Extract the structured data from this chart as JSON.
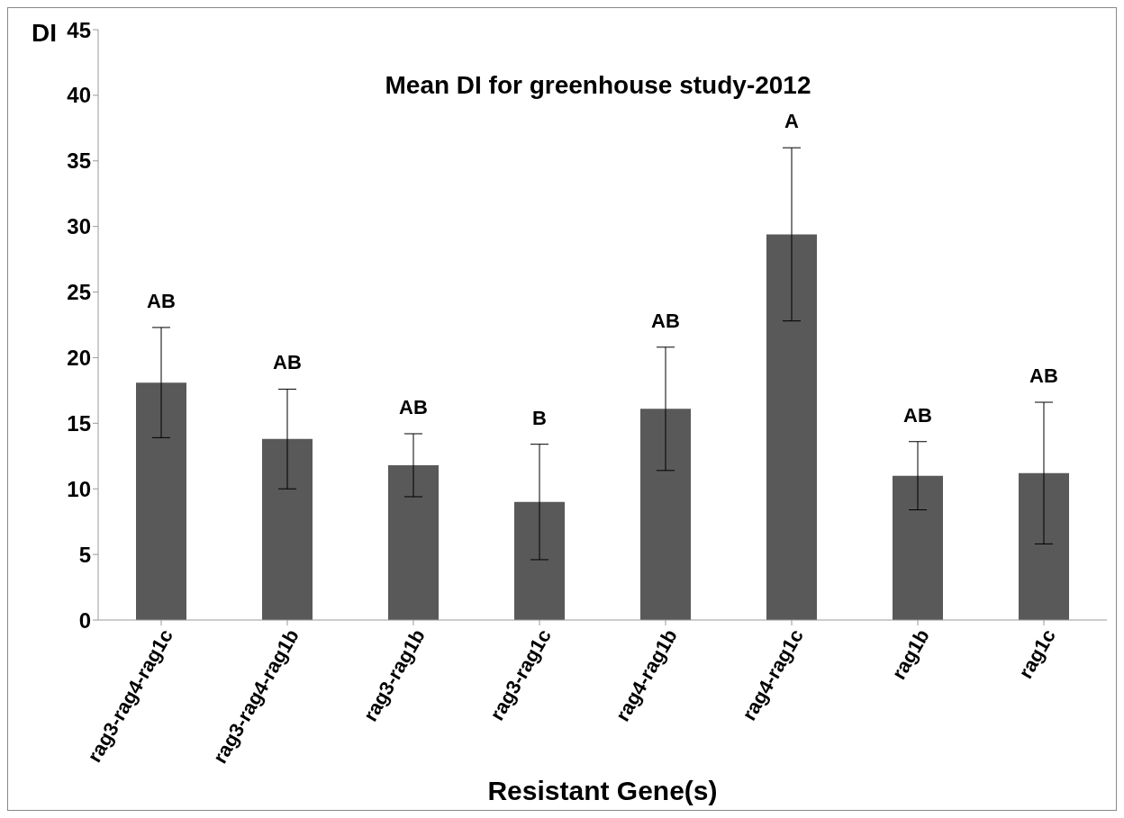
{
  "chart_data": {
    "type": "bar",
    "title": "Mean DI for greenhouse study-2012",
    "xlabel": "Resistant Gene(s)",
    "ylabel": "DI",
    "categories": [
      "rag3-rag4-rag1c",
      "rag3-rag4-rag1b",
      "rag3-rag1b",
      "rag3-rag1c",
      "rag4-rag1b",
      "rag4-rag1c",
      "rag1b",
      "rag1c"
    ],
    "values": [
      18.1,
      13.8,
      11.8,
      9.0,
      16.1,
      29.4,
      11.0,
      11.2
    ],
    "errors": [
      4.2,
      3.8,
      2.4,
      4.4,
      4.7,
      6.6,
      2.6,
      5.4
    ],
    "color": "#595959",
    "ylim": [
      0,
      45
    ],
    "yticks": [
      0,
      5,
      10,
      15,
      20,
      25,
      30,
      35,
      40,
      45
    ],
    "grid": false,
    "legend": false,
    "annotations": [
      "AB",
      "AB",
      "AB",
      "B",
      "AB",
      "A",
      "AB",
      "AB"
    ]
  }
}
